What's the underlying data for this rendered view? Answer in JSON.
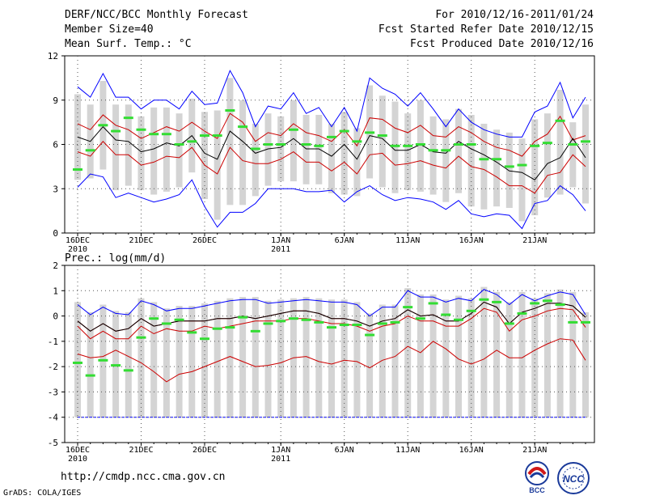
{
  "header": {
    "title": "DERF/NCC/BCC Monthly Forecast",
    "member_size": "Member Size=40",
    "variable": "Mean Surf. Temp.: °C",
    "for_period": "For 2010/12/16-2011/01/24",
    "fcst_started": "Fcst Started Refer Date 2010/12/15",
    "fcst_produced": "Fcst Produced Date 2010/12/16"
  },
  "footer": {
    "url": "http://cmdp.ncc.cma.gov.cn",
    "grads": "GrADS: COLA/IGES",
    "logo_bcc": "BCC",
    "logo_ncc": "NCC"
  },
  "colors": {
    "envelope": "#0000ff",
    "spread": "#cc0000",
    "mean": "#000000",
    "median": "#33dd33",
    "bar": "#d4d4d4"
  },
  "chart_data": [
    {
      "type": "line",
      "title": "Mean Surf. Temp.: °C",
      "ylim": [
        0,
        12
      ],
      "yticks": [
        0,
        3,
        6,
        9,
        12
      ],
      "xtick_labels": [
        {
          "day": 0,
          "label": "16DEC",
          "sub": "2010"
        },
        {
          "day": 5,
          "label": "21DEC",
          "sub": ""
        },
        {
          "day": 10,
          "label": "26DEC",
          "sub": ""
        },
        {
          "day": 16,
          "label": "1JAN",
          "sub": "2011"
        },
        {
          "day": 21,
          "label": "6JAN",
          "sub": ""
        },
        {
          "day": 26,
          "label": "11JAN",
          "sub": ""
        },
        {
          "day": 31,
          "label": "16JAN",
          "sub": ""
        },
        {
          "day": 36,
          "label": "21JAN",
          "sub": ""
        }
      ],
      "series": [
        {
          "name": "max",
          "values": [
            9.9,
            9.2,
            10.8,
            9.2,
            9.2,
            8.4,
            9.0,
            9.0,
            8.4,
            9.6,
            8.7,
            8.8,
            11.0,
            9.5,
            7.2,
            8.6,
            8.4,
            9.5,
            8.1,
            8.5,
            7.2,
            8.5,
            6.9,
            10.5,
            9.8,
            9.4,
            8.6,
            9.5,
            8.4,
            7.2,
            8.4,
            7.5,
            7.0,
            6.7,
            6.5,
            6.5,
            8.2,
            8.6,
            10.2,
            7.8,
            9.2
          ]
        },
        {
          "name": "upper",
          "values": [
            7.4,
            7.0,
            8.0,
            7.3,
            7.0,
            6.4,
            6.8,
            7.2,
            6.9,
            7.5,
            6.9,
            6.4,
            8.1,
            7.5,
            6.2,
            6.8,
            6.6,
            7.4,
            6.8,
            6.6,
            6.2,
            7.0,
            5.9,
            7.8,
            7.7,
            7.1,
            6.8,
            7.3,
            6.6,
            6.5,
            7.2,
            6.8,
            6.2,
            5.8,
            5.6,
            5.2,
            6.2,
            6.7,
            7.9,
            6.3,
            6.6
          ]
        },
        {
          "name": "mean",
          "values": [
            6.5,
            6.2,
            7.2,
            6.3,
            6.2,
            5.5,
            5.7,
            6.1,
            5.9,
            6.6,
            5.4,
            5.0,
            6.9,
            6.2,
            5.4,
            5.7,
            5.8,
            6.4,
            5.7,
            5.7,
            5.2,
            6.0,
            5.0,
            6.6,
            6.4,
            5.6,
            5.6,
            6.0,
            5.5,
            5.4,
            6.2,
            5.7,
            5.3,
            4.8,
            4.2,
            4.1,
            3.6,
            4.7,
            5.1,
            6.4,
            5.1
          ]
        },
        {
          "name": "lower",
          "values": [
            5.5,
            5.2,
            6.2,
            5.3,
            5.3,
            4.6,
            4.8,
            5.2,
            5.1,
            5.8,
            4.6,
            4.0,
            5.8,
            4.9,
            4.7,
            4.7,
            5.0,
            5.5,
            4.8,
            4.8,
            4.2,
            4.8,
            4.0,
            5.3,
            5.4,
            4.6,
            4.7,
            4.9,
            4.6,
            4.4,
            5.2,
            4.5,
            4.3,
            3.8,
            3.2,
            3.2,
            2.7,
            3.9,
            4.1,
            5.3,
            4.5
          ]
        },
        {
          "name": "min",
          "values": [
            3.1,
            4.0,
            3.8,
            2.4,
            2.7,
            2.4,
            2.1,
            2.3,
            2.6,
            3.6,
            1.8,
            0.4,
            1.4,
            1.4,
            2.0,
            3.0,
            3.0,
            3.0,
            2.8,
            2.8,
            2.9,
            2.1,
            2.8,
            3.2,
            2.6,
            2.2,
            2.4,
            2.3,
            2.1,
            1.6,
            2.2,
            1.3,
            1.1,
            1.3,
            1.2,
            0.3,
            2.0,
            2.2,
            3.2,
            2.6,
            1.5
          ]
        },
        {
          "name": "median",
          "values": [
            4.3,
            5.6,
            7.3,
            6.9,
            7.8,
            7.0,
            6.7,
            6.7,
            6.0,
            6.2,
            6.6,
            6.6,
            8.3,
            7.2,
            5.7,
            6.0,
            6.0,
            7.0,
            6.0,
            5.9,
            6.5,
            6.9,
            6.2,
            6.8,
            6.6,
            5.9,
            5.9,
            6.0,
            5.6,
            5.6,
            6.0,
            6.0,
            5.0,
            5.0,
            4.5,
            4.6,
            5.9,
            6.1,
            7.6,
            6.0,
            6.2
          ]
        }
      ]
    },
    {
      "type": "line",
      "title": "Prec.: log(mm/d)",
      "ylim": [
        -5,
        2
      ],
      "yticks": [
        -5,
        -4,
        -3,
        -2,
        -1,
        0,
        1,
        2
      ],
      "xtick_labels": [
        {
          "day": 0,
          "label": "16DEC",
          "sub": "2010"
        },
        {
          "day": 5,
          "label": "21DEC",
          "sub": ""
        },
        {
          "day": 10,
          "label": "26DEC",
          "sub": ""
        },
        {
          "day": 16,
          "label": "1JAN",
          "sub": "2011"
        },
        {
          "day": 21,
          "label": "6JAN",
          "sub": ""
        },
        {
          "day": 26,
          "label": "11JAN",
          "sub": ""
        },
        {
          "day": 31,
          "label": "16JAN",
          "sub": ""
        },
        {
          "day": 36,
          "label": "21JAN",
          "sub": ""
        }
      ],
      "series": [
        {
          "name": "max",
          "values": [
            0.45,
            0.05,
            0.35,
            0.1,
            0.05,
            0.6,
            0.45,
            0.2,
            0.3,
            0.3,
            0.4,
            0.5,
            0.6,
            0.65,
            0.65,
            0.5,
            0.55,
            0.6,
            0.65,
            0.6,
            0.55,
            0.55,
            0.45,
            0.0,
            0.35,
            0.35,
            1.0,
            0.75,
            0.75,
            0.55,
            0.7,
            0.6,
            1.05,
            0.85,
            0.45,
            0.85,
            0.6,
            0.8,
            0.95,
            0.85,
            0.05
          ]
        },
        {
          "name": "upper",
          "values": [
            -0.2,
            -0.6,
            -0.3,
            -0.6,
            -0.5,
            -0.1,
            -0.4,
            -0.3,
            -0.2,
            -0.2,
            -0.2,
            -0.1,
            -0.1,
            0.0,
            -0.1,
            0.0,
            0.1,
            0.2,
            0.2,
            0.1,
            -0.1,
            -0.1,
            -0.2,
            -0.4,
            -0.2,
            -0.1,
            0.25,
            0.0,
            0.05,
            -0.2,
            -0.2,
            0.1,
            0.55,
            0.35,
            -0.3,
            0.15,
            0.3,
            0.5,
            0.5,
            0.4,
            -0.05
          ]
        },
        {
          "name": "mean",
          "values": [
            -0.2,
            -0.6,
            -0.3,
            -0.6,
            -0.5,
            -0.1,
            -0.4,
            -0.3,
            -0.2,
            -0.2,
            -0.2,
            -0.1,
            -0.1,
            0.0,
            -0.1,
            0.0,
            0.1,
            0.2,
            0.2,
            0.1,
            -0.1,
            -0.1,
            -0.2,
            -0.4,
            -0.2,
            -0.1,
            0.25,
            0.0,
            0.05,
            -0.2,
            -0.2,
            0.1,
            0.55,
            0.35,
            -0.3,
            0.15,
            0.3,
            0.5,
            0.5,
            0.4,
            -0.05
          ]
        },
        {
          "name": "lower",
          "values": [
            -0.4,
            -0.9,
            -0.6,
            -0.9,
            -0.9,
            -0.4,
            -0.7,
            -0.5,
            -0.6,
            -0.6,
            -0.4,
            -0.5,
            -0.4,
            -0.3,
            -0.2,
            -0.2,
            -0.2,
            -0.1,
            -0.1,
            -0.2,
            -0.3,
            -0.3,
            -0.4,
            -0.6,
            -0.4,
            -0.3,
            0.0,
            -0.2,
            -0.2,
            -0.4,
            -0.4,
            -0.1,
            0.3,
            0.15,
            -0.6,
            -0.15,
            0.0,
            0.2,
            0.3,
            0.25,
            -0.45
          ]
        },
        {
          "name": "spread_low",
          "values": [
            -1.5,
            -1.65,
            -1.6,
            -1.35,
            -1.6,
            -1.85,
            -2.2,
            -2.6,
            -2.3,
            -2.2,
            -2.0,
            -1.8,
            -1.6,
            -1.8,
            -2.0,
            -1.95,
            -1.85,
            -1.65,
            -1.6,
            -1.8,
            -1.9,
            -1.75,
            -1.8,
            -2.05,
            -1.75,
            -1.6,
            -1.2,
            -1.45,
            -1.0,
            -1.3,
            -1.7,
            -1.9,
            -1.7,
            -1.35,
            -1.65,
            -1.65,
            -1.35,
            -1.1,
            -0.9,
            -0.95,
            -1.75
          ]
        },
        {
          "name": "min",
          "values": [
            -4.0,
            -4.0,
            -4.0,
            -4.0,
            -4.0,
            -4.0,
            -4.0,
            -4.0,
            -4.0,
            -4.0,
            -4.0,
            -4.0,
            -4.0,
            -4.0,
            -4.0,
            -4.0,
            -4.0,
            -4.0,
            -4.0,
            -4.0,
            -4.0,
            -4.0,
            -4.0,
            -4.0,
            -4.0,
            -4.0,
            -4.0,
            -4.0,
            -4.0,
            -4.0,
            -4.0,
            -4.0,
            -4.0,
            -4.0,
            -4.0,
            -4.0,
            -4.0,
            -4.0,
            -4.0,
            -4.0,
            -4.0
          ]
        },
        {
          "name": "median",
          "values": [
            -1.85,
            -2.35,
            -1.75,
            -1.95,
            -2.15,
            -0.85,
            -0.1,
            -0.3,
            -0.15,
            -0.65,
            -0.9,
            -0.5,
            -0.45,
            -0.05,
            -0.6,
            -0.3,
            -0.2,
            -0.1,
            -0.15,
            -0.25,
            -0.45,
            -0.35,
            -0.35,
            -0.75,
            -0.3,
            -0.25,
            0.35,
            -0.1,
            0.5,
            0.05,
            -0.15,
            0.2,
            0.65,
            0.55,
            -0.3,
            0.1,
            0.5,
            0.6,
            0.45,
            -0.25,
            -0.25
          ]
        }
      ]
    }
  ]
}
